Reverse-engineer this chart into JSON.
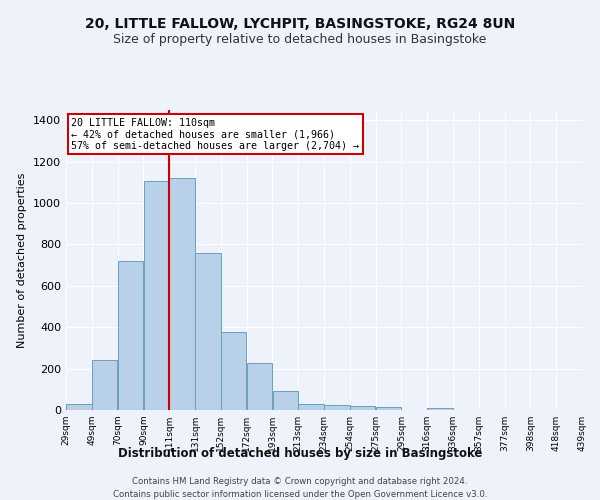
{
  "title": "20, LITTLE FALLOW, LYCHPIT, BASINGSTOKE, RG24 8UN",
  "subtitle": "Size of property relative to detached houses in Basingstoke",
  "xlabel": "Distribution of detached houses by size in Basingstoke",
  "ylabel": "Number of detached properties",
  "bar_color": "#b8d0e8",
  "bar_edge_color": "#6a9fc0",
  "bin_labels": [
    "29sqm",
    "49sqm",
    "70sqm",
    "90sqm",
    "111sqm",
    "131sqm",
    "152sqm",
    "172sqm",
    "193sqm",
    "213sqm",
    "234sqm",
    "254sqm",
    "275sqm",
    "295sqm",
    "316sqm",
    "336sqm",
    "357sqm",
    "377sqm",
    "398sqm",
    "418sqm",
    "439sqm"
  ],
  "bar_heights": [
    30,
    240,
    720,
    1105,
    1120,
    760,
    375,
    225,
    90,
    30,
    25,
    20,
    15,
    0,
    10,
    0,
    0,
    0,
    0,
    0
  ],
  "ylim": [
    0,
    1450
  ],
  "property_size_label": "20 LITTLE FALLOW: 110sqm",
  "annotation_line1": "← 42% of detached houses are smaller (1,966)",
  "annotation_line2": "57% of semi-detached houses are larger (2,704) →",
  "vline_x_index": 4,
  "n_bins": 20,
  "footer1": "Contains HM Land Registry data © Crown copyright and database right 2024.",
  "footer2": "Contains public sector information licensed under the Open Government Licence v3.0.",
  "background_color": "#eef2fb",
  "grid_color": "#ffffff",
  "annotation_box_color": "#ffffff",
  "annotation_box_edge": "#cc0000",
  "vline_color": "#cc0000",
  "title_fontsize": 10,
  "subtitle_fontsize": 9
}
